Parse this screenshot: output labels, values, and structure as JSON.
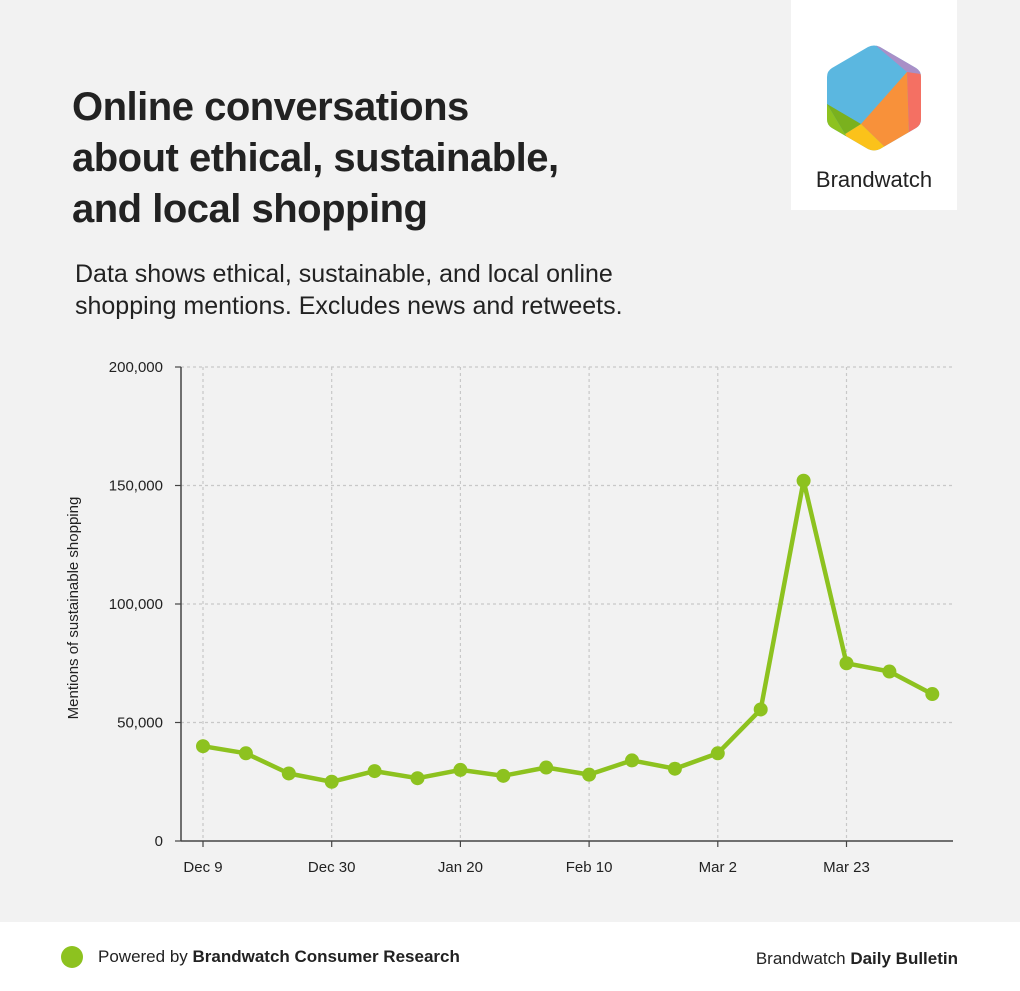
{
  "header": {
    "title_lines": [
      "Online conversations",
      "about ethical, sustainable,",
      "and local shopping"
    ],
    "subtitle_lines": [
      "Data shows ethical, sustainable, and local online",
      "shopping mentions. Excludes news and retweets."
    ]
  },
  "logo": {
    "icon": "brandwatch-hexagon-logo-icon",
    "text": "Brandwatch"
  },
  "colors": {
    "line": "#8dc21f",
    "grid": "#c8c8c8",
    "axis": "#444444",
    "background": "#f2f2f2"
  },
  "chart_data": {
    "type": "line",
    "title": "",
    "xlabel": "",
    "ylabel": "Mentions of sustainable shopping",
    "ylim": [
      0,
      200000
    ],
    "yticks": [
      0,
      50000,
      100000,
      150000,
      200000
    ],
    "ytick_labels": [
      "0",
      "50,000",
      "100,000",
      "150,000",
      "200,000"
    ],
    "xtick_labels": [
      "Dec 9",
      "Dec 30",
      "Jan 20",
      "Feb 10",
      "Mar 2",
      "Mar 23"
    ],
    "xtick_positions": [
      "Dec 9",
      "Dec 30",
      "Jan 20",
      "Feb 10",
      "Mar 2",
      "Mar 23"
    ],
    "grid": true,
    "x": [
      "Dec 9",
      "Dec 16",
      "Dec 23",
      "Dec 30",
      "Jan 6",
      "Jan 13",
      "Jan 20",
      "Jan 27",
      "Feb 3",
      "Feb 10",
      "Feb 17",
      "Feb 24",
      "Mar 2",
      "Mar 9",
      "Mar 16",
      "Mar 23",
      "Mar 30",
      "Apr 6"
    ],
    "series": [
      {
        "values": [
          40000,
          37000,
          28500,
          25000,
          29500,
          26500,
          30000,
          27500,
          31000,
          28000,
          34000,
          30500,
          37000,
          55500,
          152000,
          75000,
          71500,
          62000
        ]
      }
    ]
  },
  "footer": {
    "left_prefix": "Powered by ",
    "left_bold": "Brandwatch Consumer Research",
    "right_prefix": "Brandwatch ",
    "right_bold": "Daily Bulletin"
  }
}
